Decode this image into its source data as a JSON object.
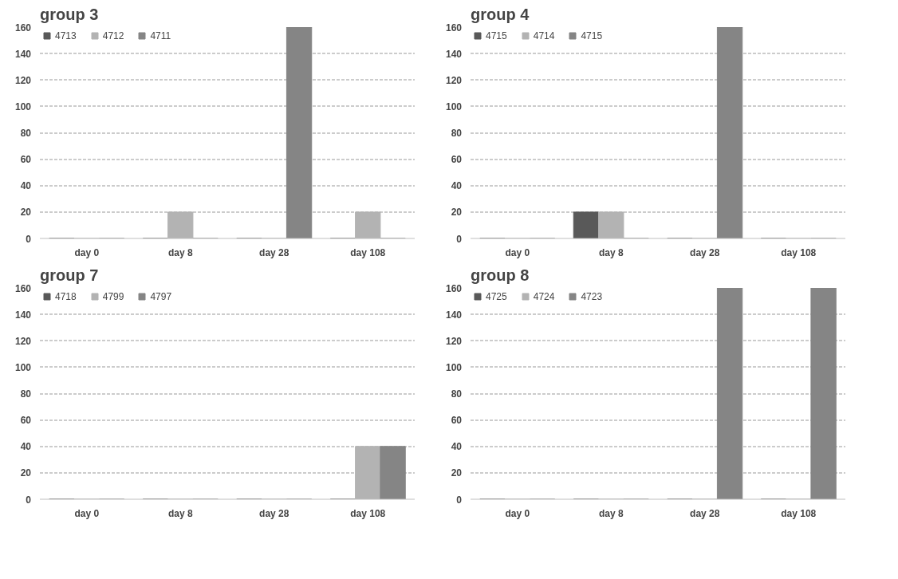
{
  "chart_data": [
    {
      "type": "bar",
      "title": "group 3",
      "categories": [
        "day 0",
        "day 8",
        "day 28",
        "day 108"
      ],
      "ylim": [
        0,
        160
      ],
      "yticks": [
        0,
        20,
        40,
        60,
        80,
        100,
        120,
        140,
        160
      ],
      "grid": "y",
      "legend": "top left",
      "series": [
        {
          "name": "4713",
          "color": "#595959",
          "values": [
            0,
            0,
            0,
            0
          ]
        },
        {
          "name": "4712",
          "color": "#b3b3b3",
          "values": [
            0,
            20,
            0,
            20
          ]
        },
        {
          "name": "4711",
          "color": "#858585",
          "values": [
            0,
            0,
            160,
            0
          ]
        }
      ]
    },
    {
      "type": "bar",
      "title": "group 4",
      "categories": [
        "day 0",
        "day 8",
        "day 28",
        "day 108"
      ],
      "ylim": [
        0,
        160
      ],
      "yticks": [
        0,
        20,
        40,
        60,
        80,
        100,
        120,
        140,
        160
      ],
      "grid": "y",
      "legend": "top left",
      "series": [
        {
          "name": "4715",
          "color": "#595959",
          "values": [
            0,
            20,
            0,
            0
          ]
        },
        {
          "name": "4714",
          "color": "#b3b3b3",
          "values": [
            0,
            20,
            0,
            0
          ]
        },
        {
          "name": "4715",
          "color": "#858585",
          "values": [
            0,
            0,
            160,
            0
          ]
        }
      ]
    },
    {
      "type": "bar",
      "title": "group 7",
      "categories": [
        "day 0",
        "day 8",
        "day 28",
        "day 108"
      ],
      "ylim": [
        0,
        160
      ],
      "yticks": [
        0,
        20,
        40,
        60,
        80,
        100,
        120,
        140,
        160
      ],
      "grid": "y",
      "legend": "top left",
      "series": [
        {
          "name": "4718",
          "color": "#595959",
          "values": [
            0,
            0,
            0,
            0
          ]
        },
        {
          "name": "4799",
          "color": "#b3b3b3",
          "values": [
            0,
            0,
            0,
            40
          ]
        },
        {
          "name": "4797",
          "color": "#858585",
          "values": [
            0,
            0,
            0,
            40
          ]
        }
      ]
    },
    {
      "type": "bar",
      "title": "group 8",
      "categories": [
        "day 0",
        "day 8",
        "day 28",
        "day 108"
      ],
      "ylim": [
        0,
        160
      ],
      "yticks": [
        0,
        20,
        40,
        60,
        80,
        100,
        120,
        140,
        160
      ],
      "grid": "y",
      "legend": "top left",
      "series": [
        {
          "name": "4725",
          "color": "#595959",
          "values": [
            0,
            0,
            0,
            0
          ]
        },
        {
          "name": "4724",
          "color": "#b3b3b3",
          "values": [
            0,
            0,
            0,
            0
          ]
        },
        {
          "name": "4723",
          "color": "#858585",
          "values": [
            0,
            0,
            160,
            160
          ]
        }
      ]
    }
  ]
}
